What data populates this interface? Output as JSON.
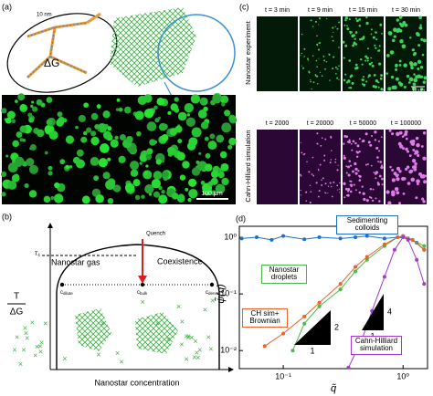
{
  "panel_a": {
    "label": "(a)",
    "molecule_scale": "10 nm",
    "delta_g": "ΔG",
    "scale_bar": "100 μm"
  },
  "panel_c": {
    "label": "(c)",
    "experiment_label": "Nanostar experiment",
    "experiment_times": [
      "t = 3 min",
      "t = 9 min",
      "t = 15 min",
      "t = 30 min"
    ],
    "simulation_label": "Cahn-Hilliard simulation",
    "simulation_times": [
      "t = 2000",
      "t = 20000",
      "t = 50000",
      "t = 100000"
    ],
    "scale_bar": "10 μm"
  },
  "panel_b": {
    "label": "(b)",
    "y_label_top": "T",
    "y_label_bottom": "ΔG",
    "critical": {
      "symbol": "T",
      "subscript": "c"
    },
    "gas": "Nanostar gas",
    "coexistence": "Coexistence",
    "quench": "Quench",
    "dilute": {
      "symbol": "c",
      "subscript": "dilute"
    },
    "bulk": {
      "symbol": "c",
      "subscript": "bulk"
    },
    "dense": {
      "symbol": "c",
      "subscript": "dense"
    },
    "x_label": "Nanostar concentration"
  },
  "chart_data": {
    "type": "line",
    "panel_label": "(d)",
    "x_label": "q̃",
    "y_label": "ψ̃(q)",
    "log_x": true,
    "log_y": true,
    "xlim": [
      0.043,
      1.6
    ],
    "ylim": [
      0.0048,
      1.56
    ],
    "xticks": [
      {
        "value": 0.1,
        "label": "10⁻¹"
      },
      {
        "value": 1,
        "label": "10⁰"
      }
    ],
    "yticks": [
      {
        "value": 0.01,
        "label": "10⁻²"
      },
      {
        "value": 0.1,
        "label": "10⁻¹"
      },
      {
        "value": 1,
        "label": "10⁰"
      }
    ],
    "series": [
      {
        "name": "Sedimenting colloids",
        "color": "#1f6fc4",
        "x": [
          0.045,
          0.06,
          0.08,
          0.1,
          0.15,
          0.2,
          0.3,
          0.4,
          0.5,
          0.7,
          0.9,
          1.1,
          1.3,
          1.5
        ],
        "values": [
          0.95,
          1.0,
          0.9,
          1.05,
          0.92,
          1.0,
          0.95,
          1.0,
          1.05,
          0.95,
          1.0,
          0.95,
          0.8,
          0.6
        ]
      },
      {
        "name": "Nanostar droplets",
        "color": "#4cb84c",
        "x": [
          0.12,
          0.15,
          0.2,
          0.3,
          0.4,
          0.5,
          0.7,
          0.9,
          1.0,
          1.2,
          1.5
        ],
        "values": [
          0.01,
          0.03,
          0.06,
          0.12,
          0.25,
          0.4,
          0.7,
          1.0,
          1.05,
          0.9,
          0.7
        ]
      },
      {
        "name": "CH sim+ Brownian",
        "color": "#e8622a",
        "x": [
          0.07,
          0.1,
          0.15,
          0.2,
          0.3,
          0.4,
          0.5,
          0.7,
          0.9,
          1.0,
          1.2,
          1.5
        ],
        "values": [
          0.012,
          0.02,
          0.04,
          0.07,
          0.15,
          0.3,
          0.45,
          0.75,
          1.0,
          1.05,
          0.9,
          0.6
        ]
      },
      {
        "name": "Cahn-Hilliard simulation",
        "color": "#a23ad0",
        "x": [
          0.35,
          0.45,
          0.55,
          0.7,
          0.85,
          1.0,
          1.1,
          1.3,
          1.5
        ],
        "values": [
          0.005,
          0.015,
          0.05,
          0.2,
          0.6,
          1.0,
          0.9,
          0.4,
          0.15
        ]
      }
    ],
    "slopes": [
      {
        "rise": "2",
        "run": "1"
      },
      {
        "rise": "4",
        "run": "1"
      }
    ]
  }
}
